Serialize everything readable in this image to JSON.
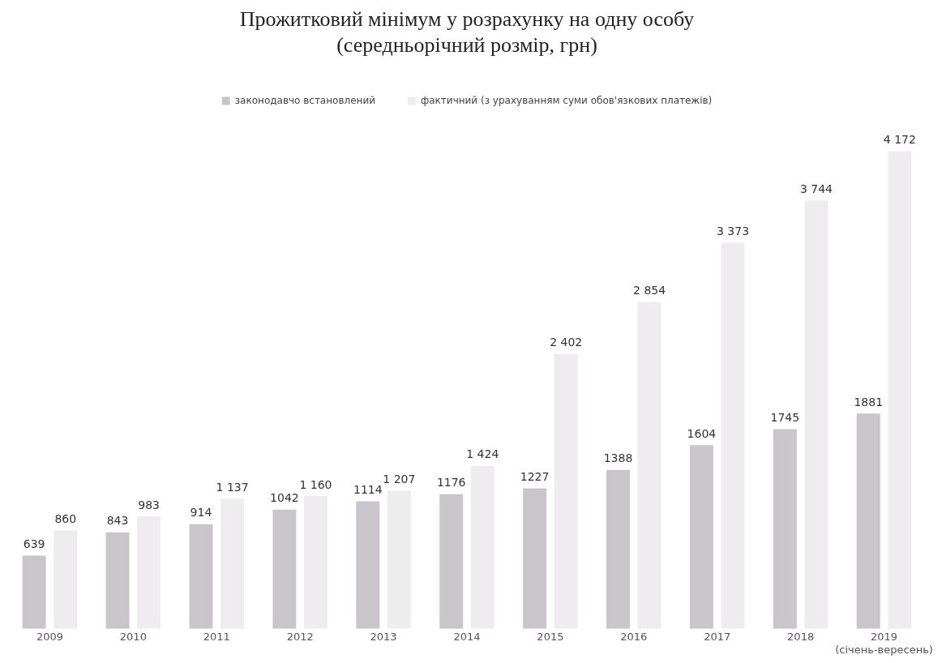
{
  "chart_data": {
    "type": "bar",
    "title": "Прожитковий мінімум у розрахунку на одну особу",
    "subtitle": "(середньорічний розмір, грн)",
    "categories": [
      "2009",
      "2010",
      "2011",
      "2012",
      "2013",
      "2014",
      "2015",
      "2016",
      "2017",
      "2018",
      "2019 (січень-вересень)"
    ],
    "series": [
      {
        "name": "законодавчо встановлений",
        "color": "#c9c5ca",
        "values": [
          639,
          843,
          914,
          1042,
          1114,
          1176,
          1227,
          1388,
          1604,
          1745,
          1881
        ],
        "value_labels": [
          "639",
          "843",
          "914",
          "1042",
          "1114",
          "1176",
          "1227",
          "1388",
          "1604",
          "1745",
          "1881"
        ]
      },
      {
        "name": "фактичний (з урахуванням суми обов'язкових платежів)",
        "color": "#eeecef",
        "values": [
          860,
          983,
          1137,
          1160,
          1207,
          1424,
          2402,
          2854,
          3373,
          3744,
          4172
        ],
        "value_labels": [
          "860",
          "983",
          "1 137",
          "1 160",
          "1 207",
          "1 424",
          "2 402",
          "2 854",
          "3 373",
          "3 744",
          "4 172"
        ]
      }
    ],
    "legend": "top",
    "grid": false
  }
}
